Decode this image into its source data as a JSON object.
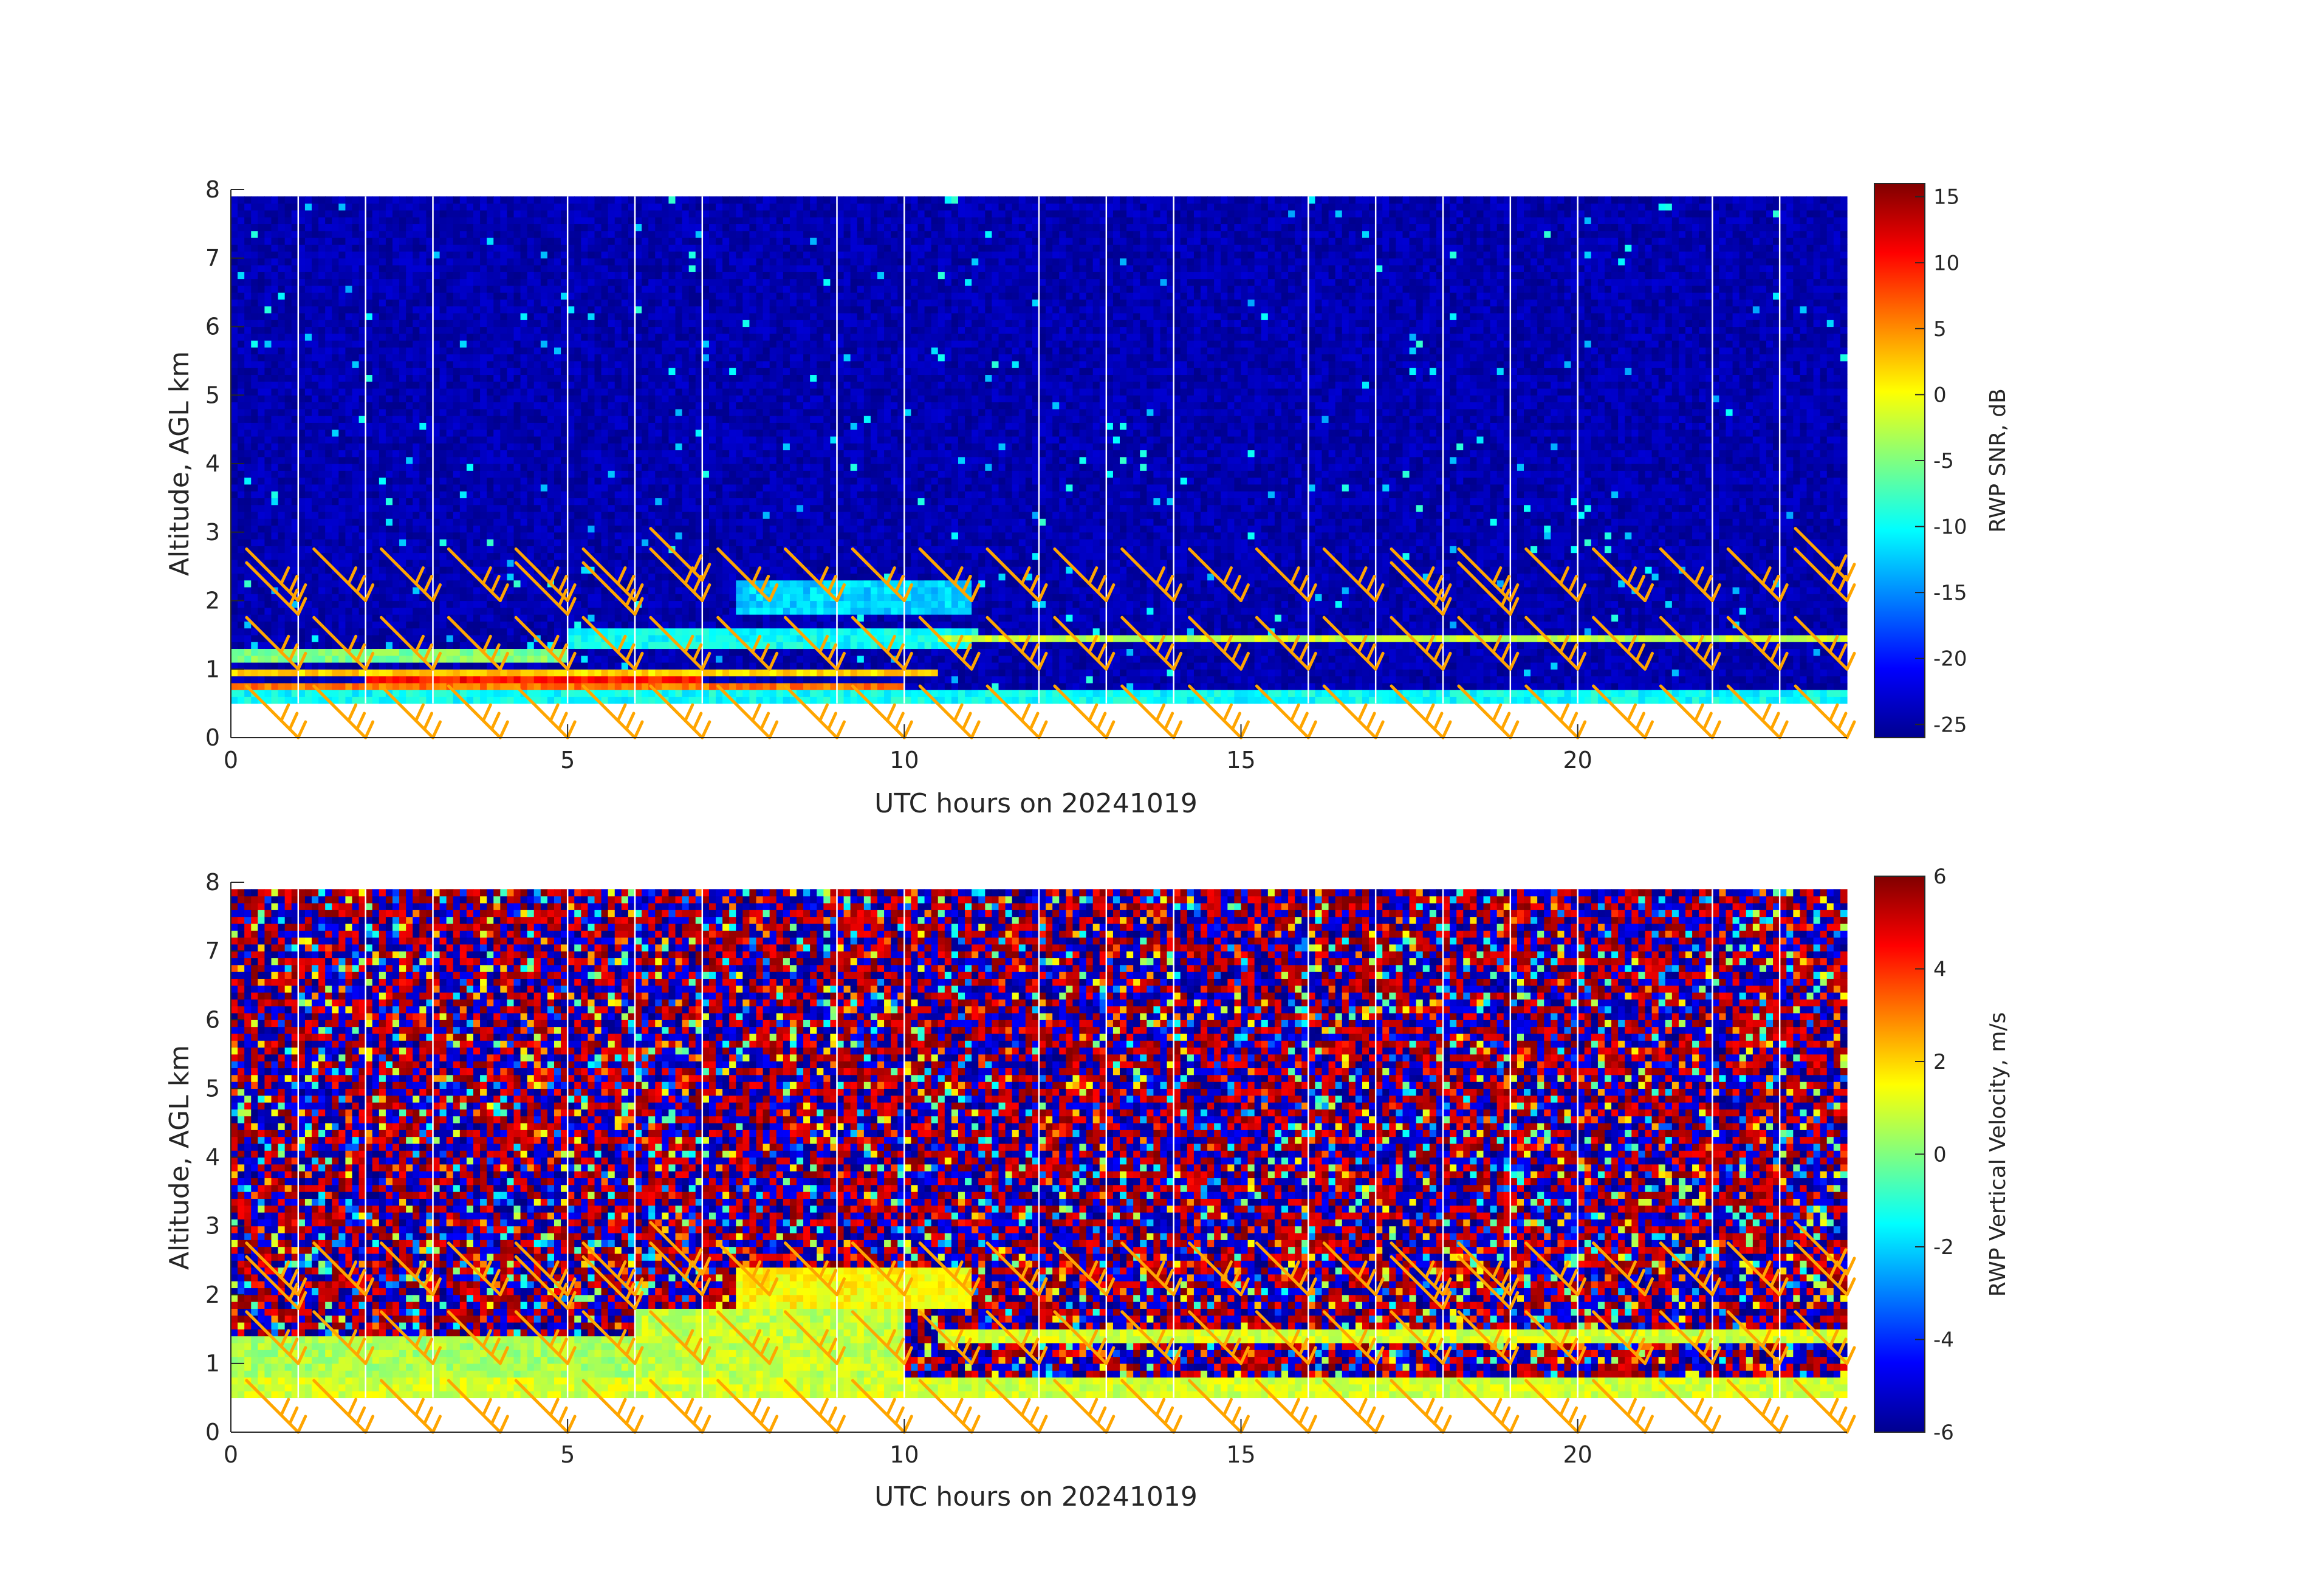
{
  "colors": {
    "barb": "#FFA500",
    "gap_line": "#FFFFFF",
    "axis": "#262626",
    "colormap": "jet"
  },
  "chart_data": [
    {
      "type": "heatmap",
      "name": "snr",
      "xlabel": "UTC hours on 20241019",
      "ylabel": "Altitude, AGL km",
      "xlim": [
        0,
        24
      ],
      "ylim": [
        0,
        8
      ],
      "xticks": [
        0,
        5,
        10,
        15,
        20
      ],
      "yticks": [
        0,
        1,
        2,
        3,
        4,
        5,
        6,
        7,
        8
      ],
      "colorbar": {
        "label": "RWP SNR, dB",
        "min": -26,
        "max": 16,
        "ticks": [
          15,
          10,
          5,
          0,
          -5,
          -10,
          -15,
          -20,
          -25
        ]
      },
      "data_altitude_range_km": [
        0.5,
        7.9
      ],
      "gap_lines_utc_hours": [
        1,
        2,
        3,
        5,
        6,
        7,
        9,
        10,
        12,
        13,
        14,
        16,
        17,
        18,
        19,
        20,
        22,
        23
      ],
      "layers": [
        {
          "start_hour": 0,
          "end_hour": 24,
          "bottom_km": 0.5,
          "top_km": 0.62,
          "value_db": -10
        },
        {
          "start_hour": 0,
          "end_hour": 10,
          "bottom_km": 0.65,
          "top_km": 0.8,
          "value_db": 6
        },
        {
          "start_hour": 2,
          "end_hour": 7,
          "bottom_km": 0.75,
          "top_km": 0.95,
          "value_db": 10
        },
        {
          "start_hour": 0,
          "end_hour": 10.5,
          "bottom_km": 0.85,
          "top_km": 1.0,
          "value_db": 2
        },
        {
          "start_hour": 0,
          "end_hour": 5,
          "bottom_km": 1.05,
          "top_km": 1.25,
          "value_db": -5
        },
        {
          "start_hour": 5,
          "end_hour": 11,
          "bottom_km": 1.3,
          "top_km": 1.6,
          "value_db": -10
        },
        {
          "start_hour": 7.5,
          "end_hour": 11,
          "bottom_km": 1.8,
          "top_km": 2.3,
          "value_db": -12
        },
        {
          "start_hour": 10.5,
          "end_hour": 24,
          "bottom_km": 1.35,
          "top_km": 1.5,
          "value_db": -2
        }
      ]
    },
    {
      "type": "heatmap",
      "name": "vertical_velocity",
      "xlabel": "UTC hours on 20241019",
      "ylabel": "Altitude, AGL km",
      "xlim": [
        0,
        24
      ],
      "ylim": [
        0,
        8
      ],
      "xticks": [
        0,
        5,
        10,
        15,
        20
      ],
      "yticks": [
        0,
        1,
        2,
        3,
        4,
        5,
        6,
        7,
        8
      ],
      "colorbar": {
        "label": "RWP Vertical Velocity, m/s",
        "min": -6,
        "max": 6,
        "ticks": [
          6,
          4,
          2,
          0,
          -2,
          -4,
          -6
        ]
      },
      "data_altitude_range_km": [
        0.5,
        7.9
      ],
      "gap_lines_utc_hours": [
        1,
        2,
        3,
        5,
        6,
        7,
        9,
        10,
        12,
        13,
        14,
        16,
        17,
        18,
        19,
        20,
        22,
        23
      ],
      "layers": [
        {
          "start_hour": 0,
          "end_hour": 24,
          "bottom_km": 0.5,
          "top_km": 0.75,
          "value_ms": 1
        },
        {
          "start_hour": 0,
          "end_hour": 6,
          "bottom_km": 0.75,
          "top_km": 1.35,
          "value_ms": 0.5
        },
        {
          "start_hour": 6,
          "end_hour": 10,
          "bottom_km": 0.75,
          "top_km": 1.75,
          "value_ms": 0.8
        },
        {
          "start_hour": 7.5,
          "end_hour": 11,
          "bottom_km": 1.8,
          "top_km": 2.4,
          "value_ms": 1.5
        },
        {
          "start_hour": 10.5,
          "end_hour": 24,
          "bottom_km": 1.3,
          "top_km": 1.5,
          "value_ms": 1
        }
      ]
    }
  ],
  "wind_barbs": {
    "times_utc_hours": [
      1,
      2,
      3,
      4,
      5,
      6,
      7,
      8,
      9,
      10,
      11,
      12,
      13,
      14,
      15,
      16,
      17,
      18,
      19,
      20,
      21,
      22,
      23,
      24
    ],
    "altitudes_km": [
      0.0,
      1.0,
      2.0
    ],
    "upper_barbs": [
      {
        "t": 1,
        "z": 1.8
      },
      {
        "t": 5,
        "z": 1.8
      },
      {
        "t": 6,
        "z": 1.8
      },
      {
        "t": 7,
        "z": 2.3
      },
      {
        "t": 8,
        "z": 2.0
      },
      {
        "t": 9,
        "z": 2.0
      },
      {
        "t": 10,
        "z": 2.0
      },
      {
        "t": 11,
        "z": 2.0
      },
      {
        "t": 12,
        "z": 2.0
      },
      {
        "t": 18,
        "z": 1.8
      },
      {
        "t": 19,
        "z": 1.8
      },
      {
        "t": 21,
        "z": 2.0
      },
      {
        "t": 22,
        "z": 2.0
      },
      {
        "t": 23,
        "z": 2.0
      },
      {
        "t": 24,
        "z": 2.3
      }
    ]
  }
}
